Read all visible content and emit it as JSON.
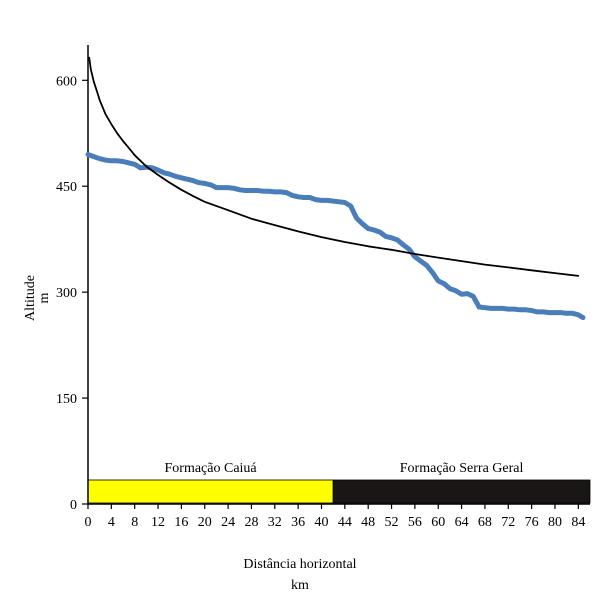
{
  "chart_data": {
    "type": "line",
    "title": "",
    "xlabel": "Distância horizontal",
    "xunit": "km",
    "ylabel": "Altitude",
    "yunit": "m",
    "xlim": [
      0,
      86
    ],
    "ylim": [
      0,
      650
    ],
    "x_ticks": [
      0,
      4,
      8,
      12,
      16,
      20,
      24,
      28,
      32,
      36,
      40,
      44,
      48,
      52,
      56,
      60,
      64,
      68,
      72,
      76,
      80,
      84
    ],
    "y_ticks": [
      0,
      150,
      300,
      450,
      600
    ],
    "grid": false,
    "legend": "none",
    "series": [
      {
        "color": "#4a7ebb",
        "points": [
          [
            0,
            495
          ],
          [
            1,
            492
          ],
          [
            2,
            489
          ],
          [
            3,
            487
          ],
          [
            4,
            486
          ],
          [
            5,
            486
          ],
          [
            6,
            485
          ],
          [
            7,
            483
          ],
          [
            8,
            481
          ],
          [
            9,
            476
          ],
          [
            10,
            477
          ],
          [
            11,
            476
          ],
          [
            12,
            473
          ],
          [
            13,
            469
          ],
          [
            14,
            467
          ],
          [
            15,
            464
          ],
          [
            16,
            462
          ],
          [
            17,
            460
          ],
          [
            18,
            458
          ],
          [
            19,
            455
          ],
          [
            20,
            454
          ],
          [
            21,
            452
          ],
          [
            22,
            448
          ],
          [
            23,
            448
          ],
          [
            24,
            448
          ],
          [
            25,
            447
          ],
          [
            26,
            445
          ],
          [
            27,
            444
          ],
          [
            28,
            444
          ],
          [
            29,
            444
          ],
          [
            30,
            443
          ],
          [
            31,
            443
          ],
          [
            32,
            442
          ],
          [
            33,
            442
          ],
          [
            34,
            441
          ],
          [
            35,
            437
          ],
          [
            36,
            435
          ],
          [
            37,
            434
          ],
          [
            38,
            434
          ],
          [
            39,
            431
          ],
          [
            40,
            430
          ],
          [
            41,
            430
          ],
          [
            42,
            429
          ],
          [
            43,
            428
          ],
          [
            44,
            427
          ],
          [
            45,
            422
          ],
          [
            46,
            405
          ],
          [
            47,
            397
          ],
          [
            48,
            390
          ],
          [
            49,
            388
          ],
          [
            50,
            385
          ],
          [
            51,
            379
          ],
          [
            52,
            377
          ],
          [
            53,
            374
          ],
          [
            54,
            367
          ],
          [
            55,
            361
          ],
          [
            56,
            350
          ],
          [
            57,
            344
          ],
          [
            58,
            338
          ],
          [
            59,
            328
          ],
          [
            60,
            316
          ],
          [
            61,
            312
          ],
          [
            62,
            305
          ],
          [
            63,
            302
          ],
          [
            64,
            297
          ],
          [
            65,
            298
          ],
          [
            66,
            294
          ],
          [
            67,
            279
          ],
          [
            68,
            278
          ],
          [
            69,
            277
          ],
          [
            70,
            277
          ],
          [
            71,
            277
          ],
          [
            72,
            276
          ],
          [
            73,
            276
          ],
          [
            74,
            275
          ],
          [
            75,
            275
          ],
          [
            76,
            274
          ],
          [
            77,
            272
          ],
          [
            78,
            272
          ],
          [
            79,
            271
          ],
          [
            80,
            271
          ],
          [
            81,
            271
          ],
          [
            82,
            270
          ],
          [
            83,
            270
          ],
          [
            84,
            268
          ],
          [
            84.8,
            264
          ]
        ]
      },
      {
        "color": "#000000",
        "points": [
          [
            0.2,
            632
          ],
          [
            0.5,
            615
          ],
          [
            1,
            598
          ],
          [
            1.5,
            585
          ],
          [
            2,
            572
          ],
          [
            3,
            552
          ],
          [
            4,
            538
          ],
          [
            5,
            525
          ],
          [
            6,
            514
          ],
          [
            7,
            504
          ],
          [
            8,
            494
          ],
          [
            10,
            478
          ],
          [
            12,
            466
          ],
          [
            14,
            455
          ],
          [
            16,
            445
          ],
          [
            18,
            436
          ],
          [
            20,
            428
          ],
          [
            24,
            416
          ],
          [
            28,
            404
          ],
          [
            32,
            395
          ],
          [
            36,
            386
          ],
          [
            40,
            378
          ],
          [
            44,
            371
          ],
          [
            48,
            365
          ],
          [
            52,
            360
          ],
          [
            56,
            354
          ],
          [
            60,
            349
          ],
          [
            64,
            344
          ],
          [
            68,
            339
          ],
          [
            72,
            335
          ],
          [
            76,
            331
          ],
          [
            80,
            327
          ],
          [
            84,
            323
          ]
        ]
      }
    ],
    "formations": [
      {
        "label": "Formação Caiuá",
        "from": 0,
        "to": 42,
        "color": "#ffff00",
        "text_color": "#000000"
      },
      {
        "label": "Formação Serra Geral",
        "from": 42,
        "to": 86,
        "color": "#1a1616",
        "text_color": "#000000"
      }
    ]
  }
}
